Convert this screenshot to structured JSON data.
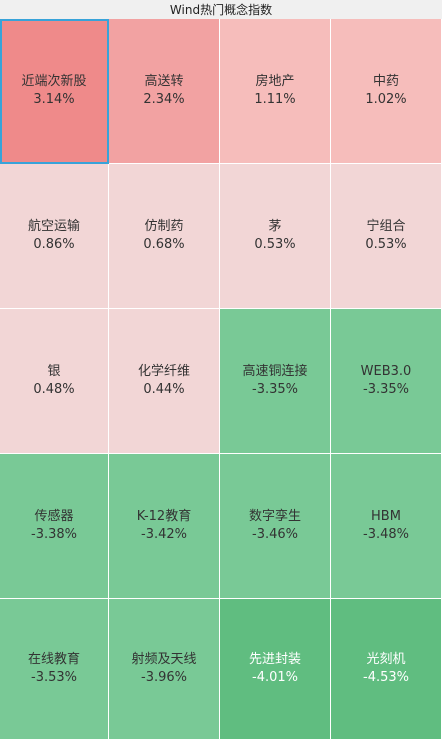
{
  "window": {
    "title": "Wind热门概念指数"
  },
  "colors": {
    "strong_red": "#ef8a8a",
    "red": "#f2a2a2",
    "light_red": "#f6bdbb",
    "pale_red": "#f2d6d6",
    "green": "#79c996",
    "dark_green": "#60bd80",
    "selection_border": "#38a3d9"
  },
  "tiles": [
    {
      "name": "近端次新股",
      "pct": "3.14%",
      "tone": "strong_red",
      "selected": true
    },
    {
      "name": "高送转",
      "pct": "2.34%",
      "tone": "red"
    },
    {
      "name": "房地产",
      "pct": "1.11%",
      "tone": "light_red"
    },
    {
      "name": "中药",
      "pct": "1.02%",
      "tone": "light_red"
    },
    {
      "name": "航空运输",
      "pct": "0.86%",
      "tone": "pale_red"
    },
    {
      "name": "仿制药",
      "pct": "0.68%",
      "tone": "pale_red"
    },
    {
      "name": "茅",
      "pct": "0.53%",
      "tone": "pale_red"
    },
    {
      "name": "宁组合",
      "pct": "0.53%",
      "tone": "pale_red"
    },
    {
      "name": "银",
      "pct": "0.48%",
      "tone": "pale_red"
    },
    {
      "name": "化学纤维",
      "pct": "0.44%",
      "tone": "pale_red"
    },
    {
      "name": "高速铜连接",
      "pct": "-3.35%",
      "tone": "green"
    },
    {
      "name": "WEB3.0",
      "pct": "-3.35%",
      "tone": "green"
    },
    {
      "name": "传感器",
      "pct": "-3.38%",
      "tone": "green"
    },
    {
      "name": "K-12教育",
      "pct": "-3.42%",
      "tone": "green"
    },
    {
      "name": "数字孪生",
      "pct": "-3.46%",
      "tone": "green"
    },
    {
      "name": "HBM",
      "pct": "-3.48%",
      "tone": "green"
    },
    {
      "name": "在线教育",
      "pct": "-3.53%",
      "tone": "green"
    },
    {
      "name": "射频及天线",
      "pct": "-3.96%",
      "tone": "green"
    },
    {
      "name": "先进封装",
      "pct": "-4.01%",
      "tone": "dark_green"
    },
    {
      "name": "光刻机",
      "pct": "-4.53%",
      "tone": "dark_green"
    }
  ]
}
